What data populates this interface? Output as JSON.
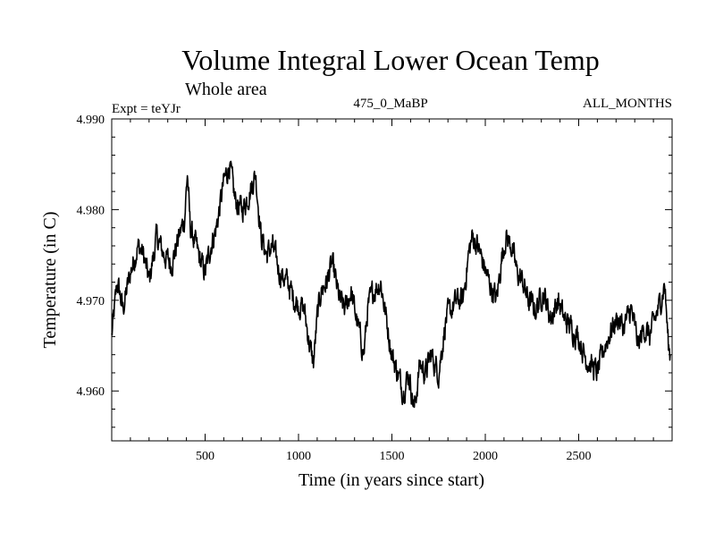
{
  "chart_data": {
    "type": "line",
    "title": "Volume Integral Lower Ocean Temp",
    "subtitle": "Whole area",
    "experiment": "Expt = teYJr",
    "run_label": "475_0_MaBP",
    "months_label": "ALL_MONTHS",
    "xlabel": "Time (in years since start)",
    "ylabel": "Temperature (in C)",
    "xlim": [
      0,
      3000
    ],
    "ylim": [
      4.9545,
      4.99
    ],
    "xticks": [
      500,
      1000,
      1500,
      2000,
      2500
    ],
    "xtick_labels": [
      "500",
      "1000",
      "1500",
      "2000",
      "2500"
    ],
    "yticks": [
      4.96,
      4.97,
      4.98,
      4.99
    ],
    "ytick_labels": [
      "4.960",
      "4.970",
      "4.980",
      "4.990"
    ],
    "series": [
      {
        "name": "volume integral lower ocean temp",
        "color": "#000000",
        "x": [
          0,
          30,
          60,
          100,
          140,
          170,
          200,
          240,
          280,
          320,
          360,
          390,
          405,
          420,
          450,
          480,
          500,
          530,
          560,
          600,
          630,
          660,
          700,
          740,
          770,
          800,
          830,
          860,
          900,
          940,
          980,
          1030,
          1060,
          1080,
          1100,
          1120,
          1150,
          1180,
          1220,
          1250,
          1280,
          1320,
          1350,
          1370,
          1400,
          1440,
          1470,
          1500,
          1530,
          1560,
          1590,
          1620,
          1650,
          1680,
          1710,
          1750,
          1790,
          1820,
          1850,
          1880,
          1910,
          1930,
          1960,
          1990,
          2020,
          2060,
          2090,
          2110,
          2140,
          2170,
          2200,
          2230,
          2270,
          2310,
          2350,
          2390,
          2420,
          2460,
          2500,
          2530,
          2560,
          2600,
          2640,
          2680,
          2710,
          2740,
          2780,
          2820,
          2850,
          2880,
          2910,
          2940,
          2960,
          2980,
          2990
        ],
        "y": [
          4.966,
          4.972,
          4.969,
          4.973,
          4.976,
          4.975,
          4.972,
          4.977,
          4.975,
          4.974,
          4.977,
          4.979,
          4.984,
          4.978,
          4.976,
          4.974,
          4.973,
          4.976,
          4.978,
          4.983,
          4.985,
          4.981,
          4.98,
          4.982,
          4.984,
          4.977,
          4.975,
          4.976,
          4.973,
          4.972,
          4.97,
          4.969,
          4.965,
          4.963,
          4.968,
          4.971,
          4.972,
          4.974,
          4.97,
          4.969,
          4.971,
          4.967,
          4.964,
          4.969,
          4.971,
          4.972,
          4.968,
          4.964,
          4.962,
          4.96,
          4.962,
          4.958,
          4.963,
          4.962,
          4.964,
          4.962,
          4.968,
          4.969,
          4.97,
          4.97,
          4.975,
          4.977,
          4.976,
          4.974,
          4.972,
          4.97,
          4.975,
          4.977,
          4.976,
          4.973,
          4.972,
          4.97,
          4.969,
          4.971,
          4.968,
          4.97,
          4.968,
          4.967,
          4.966,
          4.964,
          4.963,
          4.962,
          4.965,
          4.967,
          4.968,
          4.967,
          4.969,
          4.965,
          4.967,
          4.966,
          4.968,
          4.97,
          4.972,
          4.965,
          4.964
        ]
      }
    ]
  }
}
